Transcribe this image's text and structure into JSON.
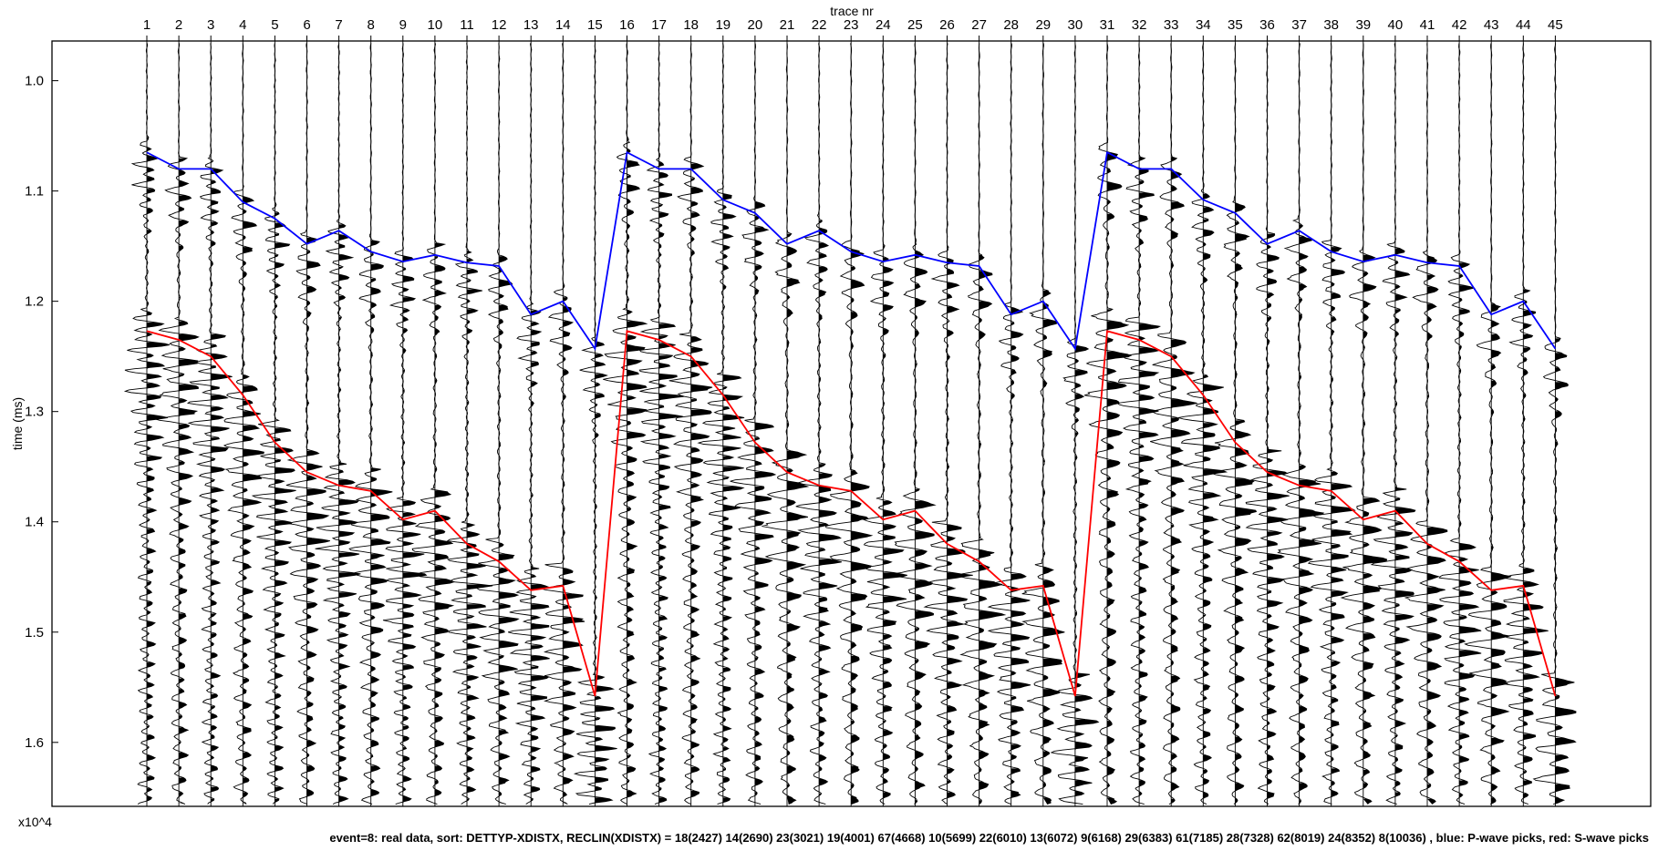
{
  "chart_data": {
    "type": "line",
    "title": "",
    "xlabel": "trace nr",
    "ylabel": "time (ms)",
    "y_multiplier": "x10^4",
    "caption": "event=8: real data, sort: DETTYP-XDISTX, RECLIN(XDISTX) = 18(2427) 14(2690) 23(3021) 19(4001) 67(4668) 10(5699) 22(6010) 13(6072) 9(6168) 29(6383) 61(7185) 28(7328) 62(8019) 24(8352) 8(10036)  , blue: P-wave picks, red: S-wave picks",
    "xlim": [
      1,
      45
    ],
    "ylim": [
      0.964,
      1.658
    ],
    "y_inverted": true,
    "grid": false,
    "legend": "none",
    "x_ticks": [
      1,
      2,
      3,
      4,
      5,
      6,
      7,
      8,
      9,
      10,
      11,
      12,
      13,
      14,
      15,
      16,
      17,
      18,
      19,
      20,
      21,
      22,
      23,
      24,
      25,
      26,
      27,
      28,
      29,
      30,
      31,
      32,
      33,
      34,
      35,
      36,
      37,
      38,
      39,
      40,
      41,
      42,
      43,
      44,
      45
    ],
    "x_tick_labels": [
      "1",
      "2",
      "3",
      "4",
      "5",
      "6",
      "7",
      "8",
      "9",
      "10",
      "11",
      "12",
      "13",
      "14",
      "15",
      "16",
      "17",
      "18",
      "19",
      "20",
      "21",
      "22",
      "23",
      "24",
      "25",
      "26",
      "27",
      "28",
      "29",
      "30",
      "31",
      "32",
      "33",
      "34",
      "35",
      "36",
      "37",
      "38",
      "39",
      "40",
      "41",
      "42",
      "43",
      "44",
      "45"
    ],
    "y_ticks": [
      1.0,
      1.1,
      1.2,
      1.3,
      1.4,
      1.5,
      1.6
    ],
    "y_tick_labels": [
      "1.0",
      "1.1",
      "1.2",
      "1.3",
      "1.4",
      "1.5",
      "1.6"
    ],
    "x": [
      1,
      2,
      3,
      4,
      5,
      6,
      7,
      8,
      9,
      10,
      11,
      12,
      13,
      14,
      15,
      16,
      17,
      18,
      19,
      20,
      21,
      22,
      23,
      24,
      25,
      26,
      27,
      28,
      29,
      30,
      31,
      32,
      33,
      34,
      35,
      36,
      37,
      38,
      39,
      40,
      41,
      42,
      43,
      44,
      45
    ],
    "series": [
      {
        "color": "#0000ff",
        "values": [
          1.065,
          1.08,
          1.08,
          1.11,
          1.125,
          1.148,
          1.136,
          1.155,
          1.164,
          1.158,
          1.165,
          1.168,
          1.212,
          1.2,
          1.243,
          1.065,
          1.08,
          1.08,
          1.108,
          1.12,
          1.148,
          1.136,
          1.155,
          1.164,
          1.158,
          1.165,
          1.168,
          1.212,
          1.2,
          1.243,
          1.065,
          1.08,
          1.08,
          1.108,
          1.12,
          1.148,
          1.136,
          1.155,
          1.164,
          1.158,
          1.165,
          1.168,
          1.212,
          1.2,
          1.243
        ]
      },
      {
        "color": "#ff0000",
        "values": [
          1.227,
          1.235,
          1.25,
          1.285,
          1.328,
          1.355,
          1.367,
          1.372,
          1.398,
          1.39,
          1.42,
          1.436,
          1.462,
          1.458,
          1.558,
          1.227,
          1.235,
          1.25,
          1.285,
          1.328,
          1.355,
          1.367,
          1.372,
          1.398,
          1.39,
          1.42,
          1.436,
          1.462,
          1.458,
          1.558,
          1.227,
          1.235,
          1.25,
          1.285,
          1.328,
          1.355,
          1.367,
          1.372,
          1.398,
          1.39,
          1.42,
          1.436,
          1.462,
          1.458,
          1.558
        ]
      }
    ]
  }
}
